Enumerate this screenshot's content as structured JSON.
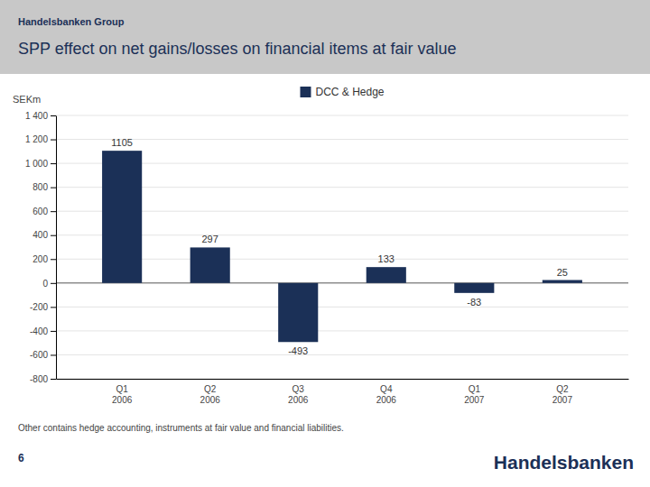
{
  "chart_data": {
    "type": "bar",
    "subtitle": "Handelsbanken Group",
    "title": "SPP effect on net gains/losses on financial items at fair value",
    "ylabel": "SEKm",
    "categories": [
      "Q1\n2006",
      "Q2\n2006",
      "Q3\n2006",
      "Q4\n2006",
      "Q1\n2007",
      "Q2\n2007"
    ],
    "series": [
      {
        "name": "DCC & Hedge",
        "color": "#1B3057",
        "values": [
          1105,
          297,
          -493,
          133,
          -83,
          25
        ]
      }
    ],
    "ylim": [
      -800,
      1400
    ],
    "yticks": [
      -800,
      -600,
      -400,
      -200,
      0,
      200,
      400,
      600,
      800,
      {
        "value": 1000,
        "label": "1 000"
      },
      {
        "value": 1200,
        "label": "1 200"
      },
      {
        "value": 1400,
        "label": "1 400"
      }
    ],
    "grid": true,
    "legend": "top",
    "data_labels": true,
    "annotations": [
      "Other contains hedge accounting, instruments at fair value and financial liabilities.",
      "6",
      "Handelsbanken"
    ]
  }
}
